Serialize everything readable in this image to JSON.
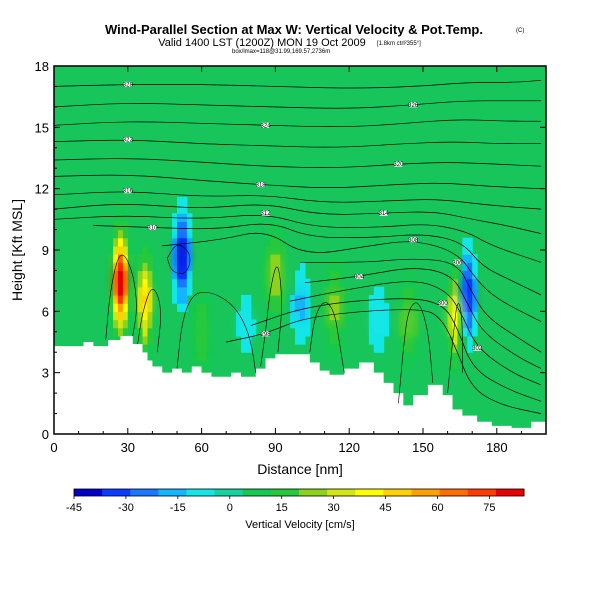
{
  "chart_data": {
    "type": "heatmap",
    "title": "Wind-Parallel Section at Max W: Vertical Velocity & Pot.Temp.",
    "title_mark": "(C)",
    "subtitle": "Valid 1400 LST (1200Z) MON 19 Oct 2009",
    "subtitle_note": "[1.8km ctrl²355°]",
    "credit": "box/lmax=118@31.99,169.57,2736m",
    "xlabel": "Distance [nm]",
    "ylabel": "Height [Kft MSL]",
    "xlim": [
      0,
      200
    ],
    "ylim": [
      0,
      18
    ],
    "x_ticks": [
      0,
      30,
      60,
      90,
      120,
      150,
      180
    ],
    "y_ticks": [
      0,
      3,
      6,
      9,
      12,
      15,
      18
    ],
    "colorbar": {
      "label": "Vertical Velocity [cm/s]",
      "ticks": [
        -45,
        -30,
        -15,
        0,
        15,
        30,
        45,
        60,
        75
      ],
      "min": -45,
      "max": 85,
      "colors": [
        "#0000c8",
        "#0a3cff",
        "#1a78ff",
        "#14b4ff",
        "#14e6e6",
        "#14d2a0",
        "#14c850",
        "#28c83c",
        "#8cd21e",
        "#d2e614",
        "#ffff00",
        "#ffd200",
        "#ffa000",
        "#ff6e00",
        "#ff3c00",
        "#e60000"
      ]
    },
    "contour_labels": [
      "322",
      "320",
      "318",
      "316",
      "314",
      "312",
      "310",
      "308",
      "306",
      "304",
      "302",
      "300",
      "298"
    ],
    "terrain_nm_kft": [
      [
        0,
        4.3
      ],
      [
        12,
        4.3
      ],
      [
        12,
        4.5
      ],
      [
        16,
        4.5
      ],
      [
        16,
        4.3
      ],
      [
        22,
        4.3
      ],
      [
        22,
        4.6
      ],
      [
        27,
        4.6
      ],
      [
        27,
        4.8
      ],
      [
        32,
        4.8
      ],
      [
        32,
        4.4
      ],
      [
        36,
        4.4
      ],
      [
        36,
        4.0
      ],
      [
        38,
        4.0
      ],
      [
        38,
        3.6
      ],
      [
        40,
        3.6
      ],
      [
        40,
        3.3
      ],
      [
        44,
        3.3
      ],
      [
        44,
        3.0
      ],
      [
        48,
        3.0
      ],
      [
        48,
        3.2
      ],
      [
        52,
        3.2
      ],
      [
        52,
        3.0
      ],
      [
        56,
        3.0
      ],
      [
        56,
        3.3
      ],
      [
        60,
        3.3
      ],
      [
        60,
        3.0
      ],
      [
        64,
        3.0
      ],
      [
        64,
        2.8
      ],
      [
        72,
        2.8
      ],
      [
        72,
        3.0
      ],
      [
        76,
        3.0
      ],
      [
        76,
        2.8
      ],
      [
        82,
        2.8
      ],
      [
        82,
        3.2
      ],
      [
        86,
        3.2
      ],
      [
        86,
        3.7
      ],
      [
        90,
        3.7
      ],
      [
        90,
        3.9
      ],
      [
        104,
        3.9
      ],
      [
        104,
        3.5
      ],
      [
        108,
        3.5
      ],
      [
        108,
        3.1
      ],
      [
        112,
        3.1
      ],
      [
        112,
        2.9
      ],
      [
        118,
        2.9
      ],
      [
        118,
        3.2
      ],
      [
        124,
        3.2
      ],
      [
        124,
        3.5
      ],
      [
        130,
        3.5
      ],
      [
        130,
        3.0
      ],
      [
        134,
        3.0
      ],
      [
        134,
        2.5
      ],
      [
        138,
        2.5
      ],
      [
        138,
        2.0
      ],
      [
        142,
        2.0
      ],
      [
        142,
        1.4
      ],
      [
        146,
        1.4
      ],
      [
        146,
        1.9
      ],
      [
        152,
        1.9
      ],
      [
        152,
        2.4
      ],
      [
        158,
        2.4
      ],
      [
        158,
        1.9
      ],
      [
        162,
        1.9
      ],
      [
        162,
        1.2
      ],
      [
        166,
        1.2
      ],
      [
        166,
        0.9
      ],
      [
        172,
        0.9
      ],
      [
        172,
        0.6
      ],
      [
        178,
        0.6
      ],
      [
        178,
        0.4
      ],
      [
        186,
        0.4
      ],
      [
        186,
        0.3
      ],
      [
        194,
        0.3
      ],
      [
        194,
        0.6
      ],
      [
        200,
        0.6
      ]
    ],
    "updrafts": [
      {
        "x": 27,
        "y": 7.5,
        "value": 82
      },
      {
        "x": 37,
        "y": 6.5,
        "value": 45
      },
      {
        "x": 90,
        "y": 7.8,
        "value": 28
      },
      {
        "x": 114,
        "y": 6.2,
        "value": 22
      },
      {
        "x": 163,
        "y": 5.8,
        "value": 40
      },
      {
        "x": 60,
        "y": 5.0,
        "value": 18
      },
      {
        "x": 144,
        "y": 5.5,
        "value": 20
      }
    ],
    "downdrafts": [
      {
        "x": 52,
        "y": 8.7,
        "value": -38
      },
      {
        "x": 168,
        "y": 6.8,
        "value": -36
      },
      {
        "x": 100,
        "y": 6.3,
        "value": -14
      },
      {
        "x": 132,
        "y": 5.6,
        "value": -12
      },
      {
        "x": 78,
        "y": 5.3,
        "value": -10
      }
    ],
    "theta_contours": [
      {
        "label": "298",
        "points": [
          [
            70,
            4.5
          ],
          [
            86,
            4.9
          ],
          [
            104,
            5.8
          ],
          [
            150,
            6.2
          ],
          [
            158,
            5.6
          ],
          [
            164,
            4.0
          ],
          [
            170,
            2.2
          ],
          [
            182,
            1.4
          ],
          [
            198,
            1.0
          ]
        ]
      },
      {
        "label": "300",
        "points": [
          [
            80,
            5.3
          ],
          [
            104,
            6.3
          ],
          [
            142,
            6.7
          ],
          [
            158,
            6.4
          ],
          [
            164,
            5.2
          ],
          [
            170,
            3.2
          ],
          [
            184,
            2.2
          ],
          [
            198,
            1.6
          ]
        ]
      },
      {
        "label": "302",
        "points": [
          [
            96,
            6.5
          ],
          [
            116,
            7.0
          ],
          [
            146,
            7.6
          ],
          [
            160,
            7.0
          ],
          [
            166,
            5.8
          ],
          [
            172,
            4.2
          ],
          [
            186,
            3.0
          ],
          [
            198,
            2.4
          ]
        ]
      },
      {
        "label": "304",
        "points": [
          [
            102,
            7.4
          ],
          [
            124,
            7.7
          ],
          [
            146,
            8.2
          ],
          [
            162,
            7.8
          ],
          [
            168,
            6.4
          ],
          [
            174,
            5.0
          ],
          [
            188,
            3.8
          ],
          [
            198,
            3.2
          ]
        ]
      },
      {
        "label": "306",
        "points": [
          [
            100,
            8.4
          ],
          [
            128,
            8.4
          ],
          [
            146,
            8.6
          ],
          [
            164,
            8.4
          ],
          [
            170,
            6.9
          ],
          [
            176,
            5.7
          ],
          [
            190,
            4.6
          ],
          [
            198,
            4.0
          ]
        ]
      },
      {
        "label": "308",
        "points": [
          [
            44,
            9.2
          ],
          [
            68,
            9.5
          ],
          [
            86,
            10.0
          ],
          [
            102,
            8.7
          ],
          [
            128,
            9.2
          ],
          [
            146,
            9.5
          ],
          [
            164,
            8.9
          ],
          [
            172,
            7.5
          ],
          [
            180,
            6.6
          ],
          [
            198,
            5.5
          ]
        ]
      },
      {
        "label": "310",
        "points": [
          [
            16,
            10.2
          ],
          [
            40,
            10.1
          ],
          [
            66,
            10.0
          ],
          [
            88,
            10.4
          ],
          [
            104,
            9.6
          ],
          [
            130,
            9.6
          ],
          [
            150,
            9.8
          ],
          [
            166,
            9.4
          ],
          [
            174,
            8.2
          ],
          [
            186,
            7.5
          ],
          [
            198,
            6.8
          ]
        ]
      },
      {
        "label": "312",
        "points": [
          [
            0,
            10.5
          ],
          [
            28,
            10.7
          ],
          [
            60,
            10.5
          ],
          [
            86,
            10.8
          ],
          [
            106,
            10.1
          ],
          [
            132,
            10.1
          ],
          [
            152,
            10.3
          ],
          [
            168,
            9.9
          ],
          [
            178,
            9.2
          ],
          [
            198,
            8.4
          ]
        ]
      },
      {
        "label": "314",
        "points": [
          [
            0,
            11.0
          ],
          [
            28,
            11.3
          ],
          [
            60,
            11.0
          ],
          [
            86,
            11.3
          ],
          [
            108,
            10.7
          ],
          [
            134,
            10.8
          ],
          [
            154,
            10.9
          ],
          [
            170,
            10.5
          ],
          [
            184,
            10.2
          ],
          [
            198,
            9.8
          ]
        ]
      },
      {
        "label": "316",
        "points": [
          [
            0,
            11.7
          ],
          [
            30,
            11.9
          ],
          [
            60,
            11.6
          ],
          [
            86,
            11.7
          ],
          [
            110,
            11.3
          ],
          [
            136,
            11.4
          ],
          [
            156,
            11.5
          ],
          [
            176,
            11.2
          ],
          [
            198,
            11.0
          ]
        ]
      },
      {
        "label": "318",
        "points": [
          [
            0,
            12.6
          ],
          [
            30,
            12.7
          ],
          [
            60,
            12.4
          ],
          [
            84,
            12.2
          ],
          [
            112,
            12.0
          ],
          [
            138,
            12.2
          ],
          [
            158,
            12.3
          ],
          [
            178,
            12.1
          ],
          [
            198,
            12.0
          ]
        ]
      },
      {
        "label": "320",
        "points": [
          [
            0,
            13.4
          ],
          [
            30,
            13.5
          ],
          [
            60,
            13.3
          ],
          [
            84,
            13.1
          ],
          [
            114,
            13.0
          ],
          [
            140,
            13.2
          ],
          [
            160,
            13.3
          ],
          [
            180,
            13.2
          ],
          [
            198,
            13.1
          ]
        ]
      },
      {
        "label": "322",
        "points": [
          [
            0,
            14.3
          ],
          [
            30,
            14.4
          ],
          [
            60,
            14.2
          ],
          [
            84,
            14.1
          ],
          [
            116,
            14.0
          ],
          [
            142,
            14.2
          ],
          [
            162,
            14.3
          ],
          [
            182,
            14.2
          ],
          [
            198,
            14.2
          ]
        ]
      },
      {
        "label": "324",
        "points": [
          [
            0,
            15.1
          ],
          [
            30,
            15.3
          ],
          [
            60,
            15.2
          ],
          [
            86,
            15.1
          ],
          [
            118,
            15.0
          ],
          [
            144,
            15.2
          ],
          [
            164,
            15.4
          ],
          [
            184,
            15.3
          ],
          [
            198,
            15.3
          ]
        ]
      },
      {
        "label": "326",
        "points": [
          [
            0,
            16.0
          ],
          [
            30,
            16.2
          ],
          [
            60,
            16.1
          ],
          [
            88,
            16.0
          ],
          [
            120,
            15.9
          ],
          [
            146,
            16.1
          ],
          [
            166,
            16.3
          ],
          [
            186,
            16.3
          ],
          [
            198,
            16.3
          ]
        ]
      },
      {
        "label": "328",
        "points": [
          [
            0,
            17.0
          ],
          [
            30,
            17.1
          ],
          [
            60,
            17.1
          ],
          [
            90,
            17.0
          ],
          [
            122,
            16.9
          ],
          [
            148,
            17.0
          ],
          [
            168,
            17.2
          ],
          [
            188,
            17.2
          ],
          [
            198,
            17.3
          ]
        ]
      }
    ],
    "w_contours": [
      {
        "points": [
          [
            21,
            4.6
          ],
          [
            23,
            7.2
          ],
          [
            27,
            9.1
          ],
          [
            32,
            8.0
          ],
          [
            34,
            6.2
          ],
          [
            32,
            4.8
          ]
        ]
      },
      {
        "points": [
          [
            34,
            4.4
          ],
          [
            36,
            6.0
          ],
          [
            40,
            7.4
          ],
          [
            44,
            6.2
          ],
          [
            42,
            4.0
          ]
        ]
      },
      {
        "points": [
          [
            46,
            8.6
          ],
          [
            50,
            9.4
          ],
          [
            56,
            8.8
          ],
          [
            54,
            7.8
          ],
          [
            48,
            7.9
          ],
          [
            46,
            8.6
          ]
        ]
      },
      {
        "points": [
          [
            50,
            3.2
          ],
          [
            52,
            5.5
          ],
          [
            56,
            6.8
          ],
          [
            62,
            7.0
          ],
          [
            70,
            6.6
          ],
          [
            76,
            5.8
          ],
          [
            80,
            4.6
          ],
          [
            82,
            3.0
          ]
        ]
      },
      {
        "points": [
          [
            84,
            3.3
          ],
          [
            86,
            5.0
          ],
          [
            88,
            7.2
          ],
          [
            91,
            8.6
          ],
          [
            93,
            6.4
          ],
          [
            91,
            4.0
          ]
        ]
      },
      {
        "points": [
          [
            104,
            4.0
          ],
          [
            106,
            5.8
          ],
          [
            110,
            6.6
          ],
          [
            114,
            6.0
          ],
          [
            116,
            4.5
          ],
          [
            118,
            3.0
          ]
        ]
      },
      {
        "points": [
          [
            140,
            1.5
          ],
          [
            142,
            4.2
          ],
          [
            144,
            6.1
          ],
          [
            148,
            6.6
          ],
          [
            152,
            5.2
          ],
          [
            154,
            2.5
          ]
        ]
      },
      {
        "points": [
          [
            160,
            2.0
          ],
          [
            162,
            4.5
          ],
          [
            164,
            6.7
          ],
          [
            166,
            5.8
          ],
          [
            166,
            3.0
          ]
        ]
      }
    ]
  }
}
